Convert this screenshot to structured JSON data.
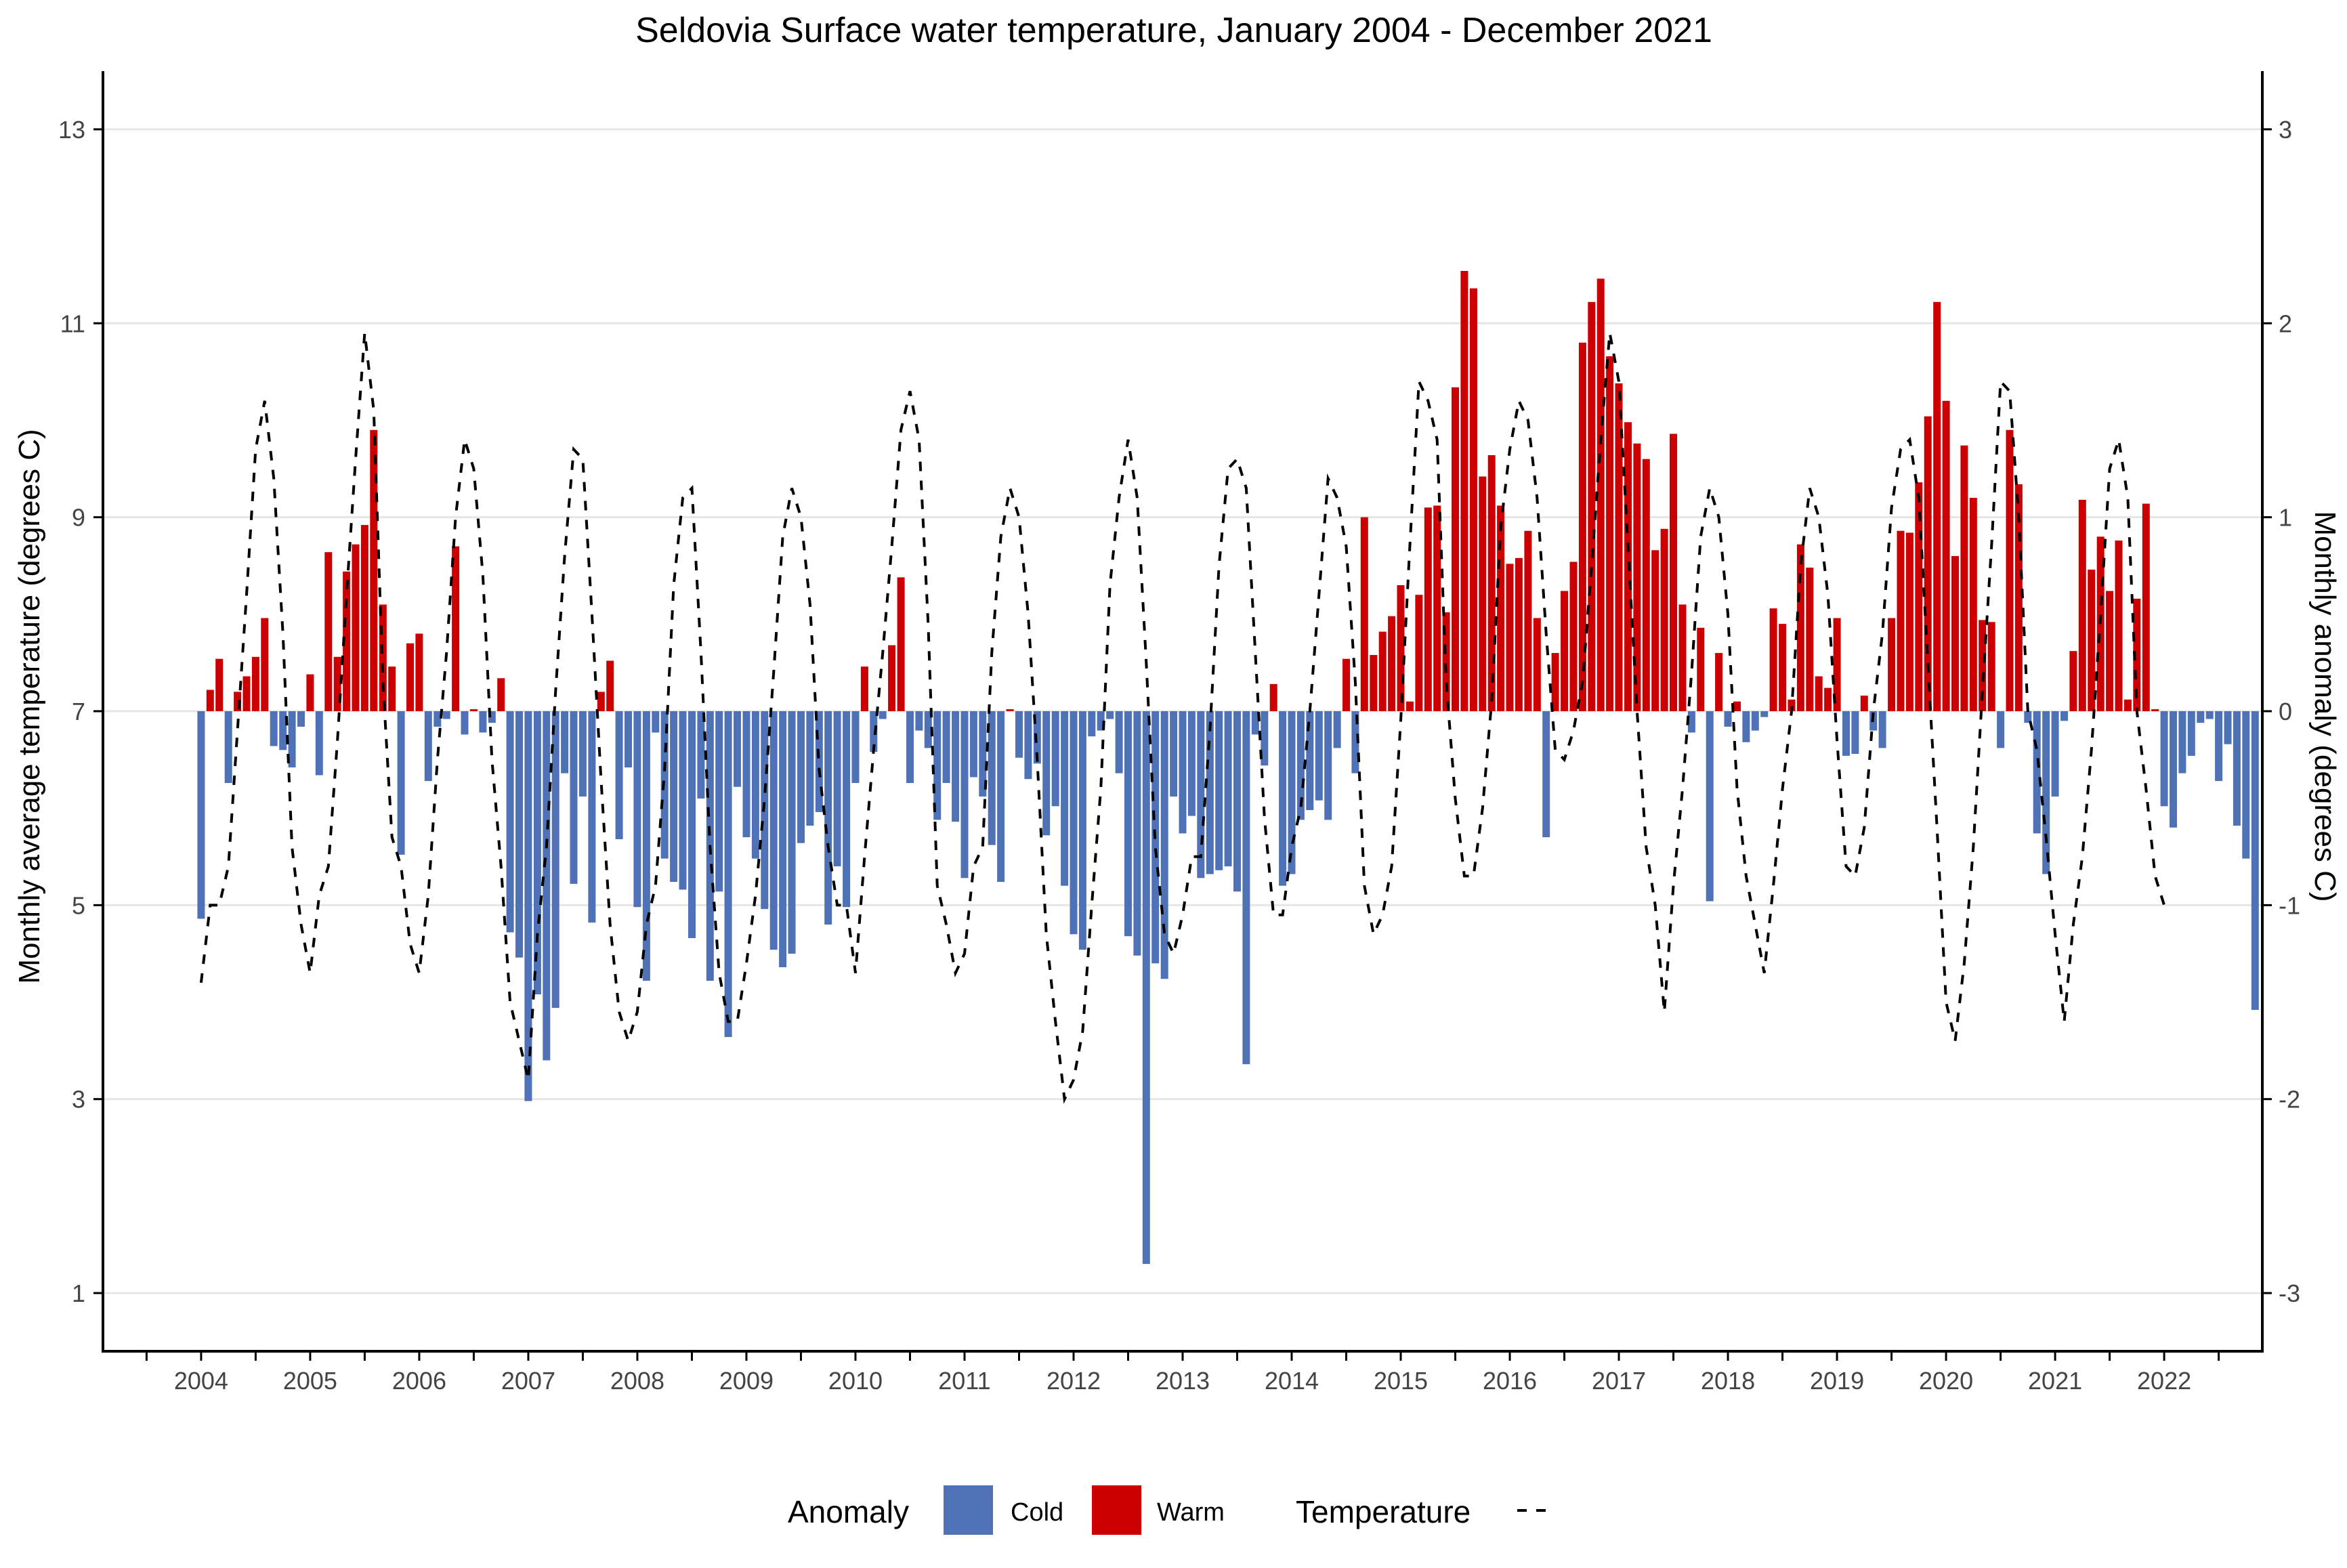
{
  "chart_data": {
    "type": "bar",
    "title": "Seldovia Surface water temperature, January 2004 - December 2021",
    "ylabel": "Monthly average temperature (degrees C)",
    "y2label": "Monthly anomaly (degrees C)",
    "ylim": [
      0.4,
      13.6
    ],
    "y2lim": [
      -3.3,
      3.3
    ],
    "y_ticks": [
      1,
      3,
      5,
      7,
      9,
      11,
      13
    ],
    "y2_ticks": [
      -3,
      -2,
      -1,
      0,
      1,
      2,
      3
    ],
    "x_ticks": [
      "2004",
      "2005",
      "2006",
      "2007",
      "2008",
      "2009",
      "2010",
      "2011",
      "2012",
      "2013",
      "2014",
      "2015",
      "2016",
      "2017",
      "2018",
      "2019",
      "2020",
      "2021",
      "2022"
    ],
    "xlim": [
      2003.1,
      2022.9
    ],
    "grid": "horizontal",
    "anomaly_start": 2004.0,
    "anomaly_step": 0.0833333,
    "anomaly": [
      -1.07,
      0.11,
      0.27,
      -0.37,
      0.1,
      0.18,
      0.28,
      0.48,
      -0.18,
      -0.2,
      -0.29,
      -0.08,
      0.19,
      -0.33,
      0.82,
      0.28,
      0.72,
      0.86,
      0.96,
      1.45,
      0.55,
      0.23,
      -0.74,
      0.35,
      0.4,
      -0.36,
      -0.08,
      -0.04,
      0.85,
      -0.12,
      0.01,
      -0.11,
      -0.06,
      0.17,
      -1.14,
      -1.27,
      -2.01,
      -1.46,
      -1.8,
      -1.53,
      -0.32,
      -0.89,
      -0.44,
      -1.09,
      0.1,
      0.26,
      -0.66,
      -0.29,
      -1.01,
      -1.39,
      -0.11,
      -0.76,
      -0.88,
      -0.92,
      -1.17,
      -0.45,
      -1.39,
      -0.93,
      -1.68,
      -0.39,
      -0.65,
      -0.76,
      -1.02,
      -1.23,
      -1.32,
      -1.25,
      -0.68,
      -0.59,
      -0.52,
      -1.1,
      -0.8,
      -1.01,
      -0.37,
      0.23,
      -0.21,
      -0.04,
      0.34,
      0.69,
      -0.37,
      -0.1,
      -0.19,
      -0.56,
      -0.37,
      -0.57,
      -0.86,
      -0.34,
      -0.44,
      -0.69,
      -0.88,
      0.01,
      -0.24,
      -0.35,
      -0.27,
      -0.64,
      -0.49,
      -0.9,
      -1.15,
      -1.23,
      -0.13,
      -0.1,
      -0.04,
      -0.32,
      -1.16,
      -1.26,
      -2.85,
      -1.3,
      -1.38,
      -0.44,
      -0.63,
      -0.54,
      -0.86,
      -0.84,
      -0.82,
      -0.8,
      -0.93,
      -1.82,
      -0.12,
      -0.28,
      0.14,
      -0.9,
      -0.84,
      -0.56,
      -0.51,
      -0.46,
      -0.56,
      -0.19,
      0.27,
      -0.32,
      1.0,
      0.29,
      0.41,
      0.49,
      0.65,
      0.05,
      0.6,
      1.05,
      1.06,
      0.51,
      1.67,
      2.27,
      2.18,
      1.21,
      1.32,
      1.06,
      0.76,
      0.79,
      0.93,
      0.48,
      -0.65,
      0.3,
      0.62,
      0.77,
      1.9,
      2.11,
      2.23,
      1.83,
      1.69,
      1.49,
      1.38,
      1.3,
      0.83,
      0.94,
      1.43,
      0.55,
      -0.11,
      0.43,
      -0.98,
      0.3,
      -0.08,
      0.05,
      -0.16,
      -0.1,
      -0.03,
      0.53,
      0.45,
      0.06,
      0.86,
      0.74,
      0.18,
      0.12,
      0.48,
      -0.23,
      -0.22,
      0.08,
      -0.1,
      -0.19,
      0.48,
      0.93,
      0.92,
      1.18,
      1.52,
      2.11,
      1.6,
      0.8,
      1.37,
      1.1,
      0.47,
      0.46,
      -0.19,
      1.45,
      1.17,
      -0.06,
      -0.63,
      -0.84,
      -0.44,
      -0.05,
      0.31,
      1.09,
      0.73,
      0.9,
      0.62,
      0.88,
      0.06,
      0.58,
      1.07,
      0.01,
      -0.49,
      -0.6,
      -0.32,
      -0.23,
      -0.06,
      -0.04,
      -0.36,
      -0.17,
      -0.59,
      -0.76,
      -1.54
    ],
    "temperature": [
      4.2,
      5.0,
      5.0,
      5.4,
      6.8,
      8.2,
      9.7,
      10.2,
      9.4,
      7.8,
      5.6,
      4.8,
      4.3,
      5.1,
      5.4,
      6.7,
      8.2,
      9.6,
      10.9,
      10.1,
      7.3,
      5.7,
      5.4,
      4.6,
      4.3,
      5.1,
      6.5,
      7.6,
      9.0,
      9.8,
      9.5,
      8.4,
      6.5,
      5.4,
      4.0,
      3.6,
      3.2,
      4.7,
      5.6,
      7.2,
      8.6,
      9.7,
      9.6,
      8.0,
      6.3,
      4.8,
      3.9,
      3.6,
      3.9,
      4.8,
      5.2,
      6.4,
      8.3,
      9.2,
      9.3,
      7.6,
      5.6,
      4.3,
      3.8,
      3.8,
      4.4,
      5.1,
      6.1,
      7.4,
      8.8,
      9.3,
      9.0,
      8.1,
      6.4,
      5.6,
      5.0,
      5.0,
      4.3,
      5.5,
      6.6,
      7.6,
      8.7,
      9.9,
      10.3,
      9.8,
      7.9,
      5.2,
      4.8,
      4.3,
      4.5,
      5.4,
      5.6,
      7.6,
      8.8,
      9.3,
      9.0,
      8.0,
      6.5,
      4.7,
      3.8,
      3.0,
      3.2,
      3.7,
      5.0,
      6.2,
      8.3,
      9.2,
      9.8,
      9.2,
      7.5,
      5.6,
      4.7,
      4.5,
      4.9,
      5.5,
      5.5,
      6.8,
      8.5,
      9.5,
      9.6,
      9.3,
      7.6,
      5.9,
      4.9,
      4.9,
      5.6,
      6.0,
      7.0,
      8.2,
      9.4,
      9.2,
      8.7,
      7.3,
      5.2,
      4.7,
      4.9,
      5.4,
      6.9,
      8.7,
      10.4,
      10.2,
      9.8,
      7.3,
      6.1,
      5.3,
      5.3,
      6.0,
      7.1,
      8.9,
      9.7,
      10.2,
      10.0,
      9.2,
      7.8,
      6.6,
      6.5,
      6.8,
      7.3,
      8.5,
      9.8,
      10.9,
      10.4,
      8.7,
      7.0,
      5.6,
      5.0,
      3.9,
      5.2,
      6.2,
      7.4,
      8.8,
      9.3,
      9.0,
      8.0,
      6.2,
      5.3,
      4.8,
      4.3,
      5.2,
      6.2,
      7.0,
      8.5,
      9.3,
      9.0,
      8.2,
      6.7,
      5.4,
      5.3,
      5.8,
      7.0,
      7.8,
      9.1,
      9.7,
      9.8,
      9.2,
      7.5,
      5.8,
      4.0,
      3.6,
      4.4,
      5.6,
      7.2,
      8.7,
      10.4,
      10.3,
      9.0,
      7.0,
      6.6,
      5.7,
      4.7,
      3.8,
      4.8,
      5.5,
      6.6,
      8.0,
      9.5,
      9.8,
      9.2,
      7.0,
      6.2,
      5.3,
      5.0
    ],
    "temperature_start": 2004.0,
    "temperature_step": 0.0833333,
    "colors": {
      "cold": "#4f72b6",
      "warm": "#cc0000",
      "line": "#000000",
      "grid": "#e6e6e6"
    }
  },
  "legend": {
    "anomaly_title": "Anomaly",
    "cold_label": "Cold",
    "warm_label": "Warm",
    "temperature_title": "Temperature",
    "placement": "bottom"
  }
}
